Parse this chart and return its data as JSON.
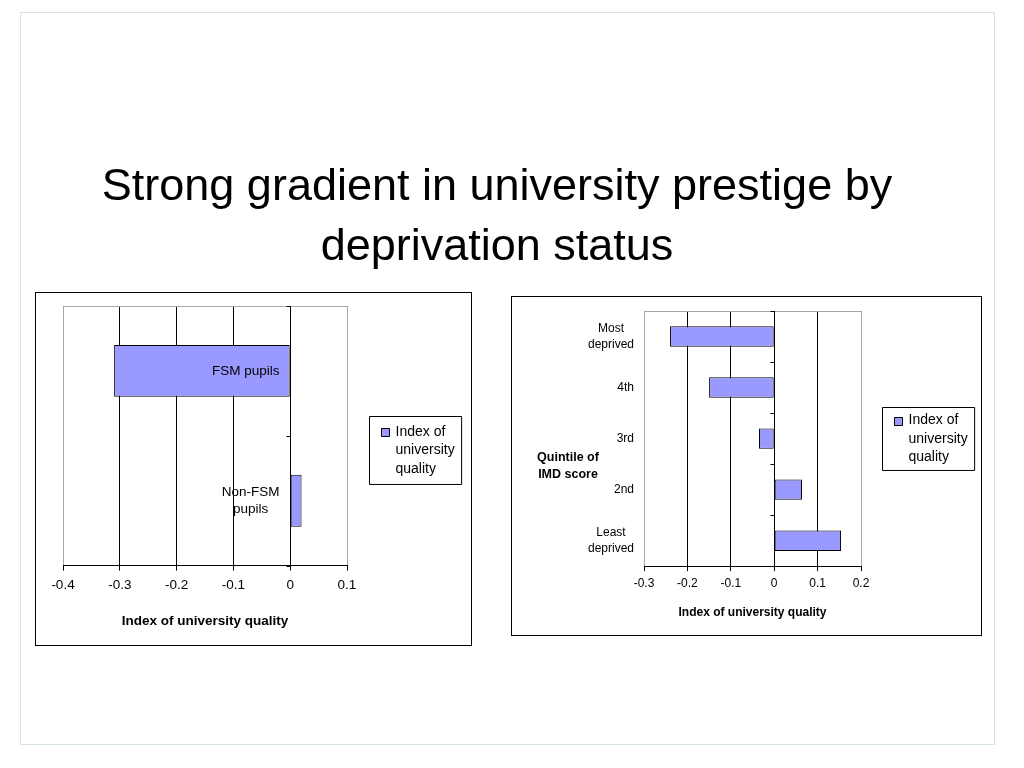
{
  "chart_data": [
    {
      "type": "other",
      "title": "Strong gradient in university prestige by deprivation status"
    },
    {
      "type": "bar",
      "orientation": "horizontal",
      "categories": [
        "FSM pupils",
        "Non-FSM pupils"
      ],
      "series": [
        {
          "name": "Index of university quality",
          "color": "#9999ff",
          "values": [
            -0.31,
            0.02
          ]
        }
      ],
      "xlabel": "Index of university quality",
      "xlim": [
        -0.4,
        0.1
      ],
      "xticks": [
        -0.4,
        -0.3,
        -0.2,
        -0.1,
        0,
        0.1
      ],
      "grid": "x",
      "legend": "right"
    },
    {
      "type": "bar",
      "orientation": "horizontal",
      "categories": [
        "Most deprived",
        "4th",
        "3rd",
        "2nd",
        "Least deprived"
      ],
      "series": [
        {
          "name": "Index of university quality",
          "color": "#9999ff",
          "values": [
            -0.24,
            -0.15,
            -0.035,
            0.064,
            0.154
          ]
        }
      ],
      "xlabel": "Index of university quality",
      "ylabel": "Quintile of IMD score",
      "xlim": [
        -0.3,
        0.2
      ],
      "xticks": [
        -0.3,
        -0.2,
        -0.1,
        0,
        0.1,
        0.2
      ],
      "grid": "x",
      "legend": "right"
    }
  ]
}
